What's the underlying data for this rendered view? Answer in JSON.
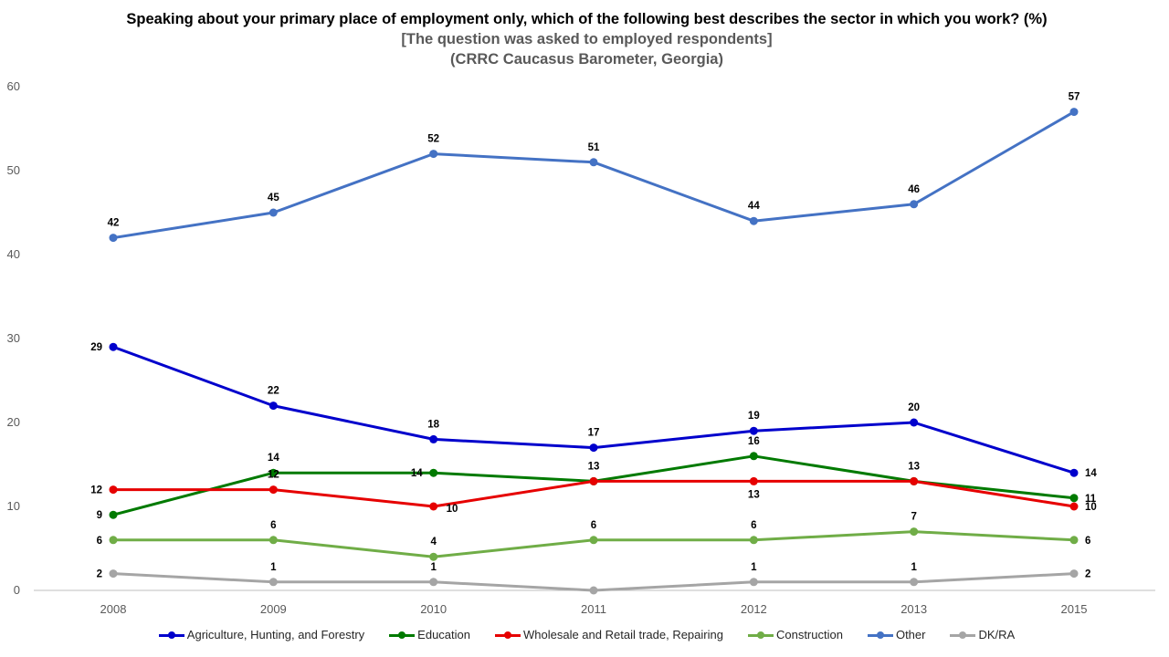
{
  "chart_data": {
    "type": "line",
    "title": "Speaking about your primary place of employment only, which of the following best describes the sector in which you work? (%)",
    "subtitle_1": "[The question was asked to employed respondents]",
    "subtitle_2": "(CRRC Caucasus Barometer, Georgia)",
    "categories": [
      "2008",
      "2009",
      "2010",
      "2011",
      "2012",
      "2013",
      "2015"
    ],
    "ylim": [
      0,
      60
    ],
    "yticks": [
      "0",
      "10",
      "20",
      "30",
      "40",
      "50",
      "60"
    ],
    "legend_position": "bottom",
    "series": [
      {
        "name": "Agriculture, Hunting, and Forestry",
        "color": "#0000CC",
        "values": [
          29,
          22,
          18,
          17,
          19,
          20,
          14
        ],
        "labels": [
          "29",
          "22",
          "18",
          "17",
          "19",
          "20",
          "14"
        ]
      },
      {
        "name": "Education",
        "color": "#007A00",
        "values": [
          9,
          14,
          14,
          13,
          16,
          13,
          11
        ],
        "labels": [
          "9",
          "14",
          "14",
          "13",
          "16",
          "13",
          "11"
        ]
      },
      {
        "name": "Wholesale and Retail trade, Repairing",
        "color": "#E60000",
        "values": [
          12,
          12,
          10,
          13,
          13,
          13,
          10
        ],
        "labels": [
          "12",
          "12",
          "10",
          "",
          "13",
          "",
          "10"
        ]
      },
      {
        "name": "Construction",
        "color": "#70AD47",
        "values": [
          6,
          6,
          4,
          6,
          6,
          7,
          6
        ],
        "labels": [
          "6",
          "6",
          "4",
          "6",
          "6",
          "7",
          "6"
        ]
      },
      {
        "name": "Other",
        "color": "#4472C4",
        "values": [
          42,
          45,
          52,
          51,
          44,
          46,
          57
        ],
        "labels": [
          "42",
          "45",
          "52",
          "51",
          "44",
          "46",
          "57"
        ]
      },
      {
        "name": "DK/RA",
        "color": "#A5A5A5",
        "values": [
          2,
          1,
          1,
          0,
          1,
          1,
          2
        ],
        "labels": [
          "2",
          "1",
          "1",
          "",
          "1",
          "1",
          "2"
        ]
      }
    ]
  }
}
